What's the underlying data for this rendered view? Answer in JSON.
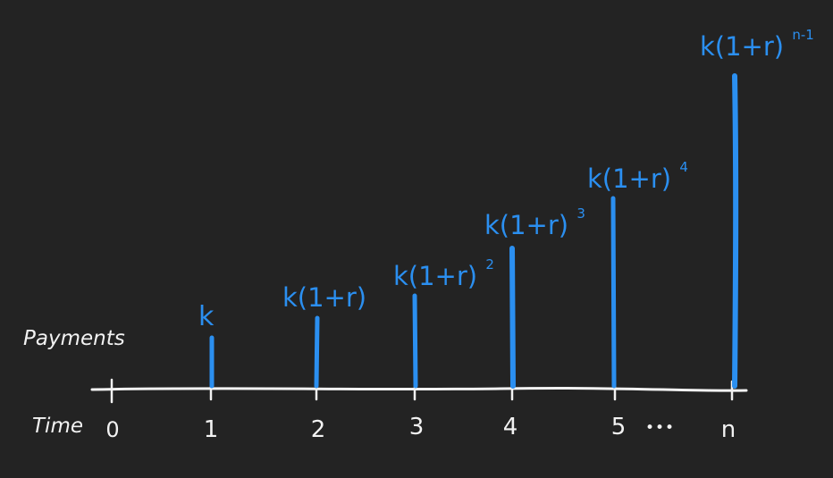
{
  "labels": {
    "payments": "Payments",
    "time": "Time"
  },
  "ticks": [
    {
      "label": "0"
    },
    {
      "label": "1"
    },
    {
      "label": "2"
    },
    {
      "label": "3"
    },
    {
      "label": "4"
    },
    {
      "label": "5"
    },
    {
      "label": "n"
    }
  ],
  "ellipsis": "•••",
  "payments": [
    {
      "period": "1",
      "base": "k",
      "exp": ""
    },
    {
      "period": "2",
      "base": "k(1+r)",
      "exp": ""
    },
    {
      "period": "3",
      "base": "k(1+r)",
      "exp": "2"
    },
    {
      "period": "4",
      "base": "k(1+r)",
      "exp": "3"
    },
    {
      "period": "5",
      "base": "k(1+r)",
      "exp": "4"
    },
    {
      "period": "n",
      "base": "k(1+r)",
      "exp": "n-1"
    }
  ],
  "colors": {
    "background": "#232323",
    "axis": "#f2f2f2",
    "payment": "#2b8ff0"
  }
}
